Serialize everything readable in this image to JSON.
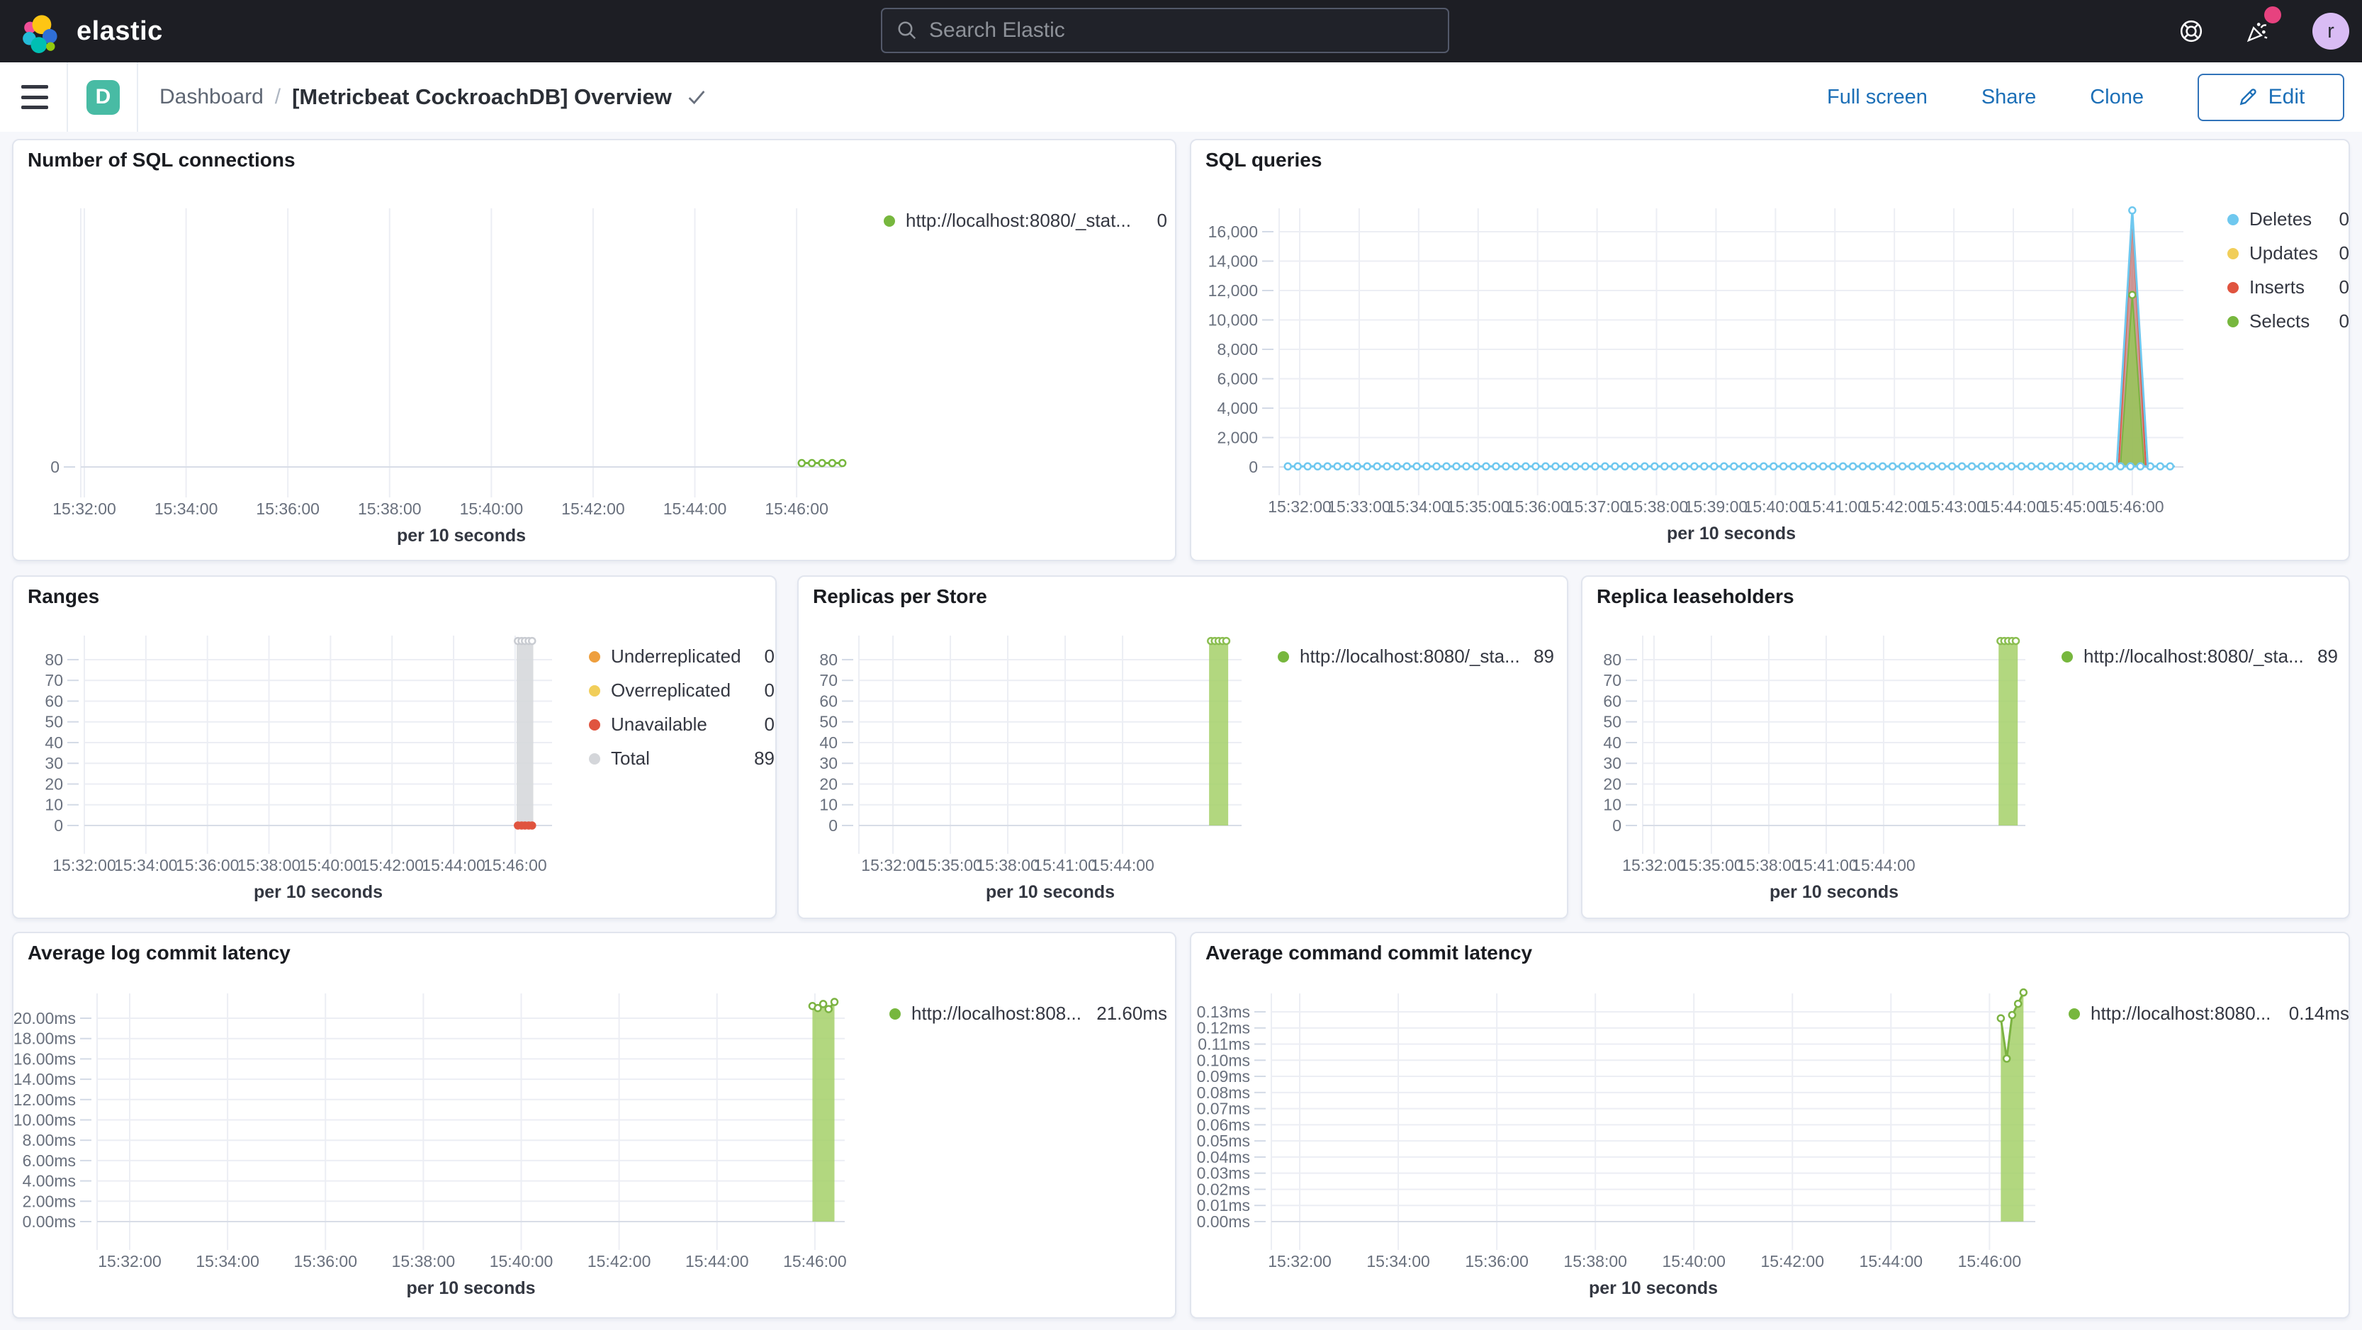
{
  "topnav": {
    "brand": "elastic",
    "search_placeholder": "Search Elastic",
    "avatar_initial": "r"
  },
  "toolbar": {
    "space_initial": "D",
    "breadcrumb_root": "Dashboard",
    "breadcrumb_sep": "/",
    "title": "[Metricbeat CockroachDB] Overview",
    "actions": {
      "full_screen": "Full screen",
      "share": "Share",
      "clone": "Clone",
      "edit": "Edit"
    }
  },
  "colors": {
    "header_bg": "#1D1E24",
    "accent_blue": "#1C6FB7",
    "series_green": "#77B73E",
    "series_blue": "#6FC8EF",
    "series_yellow": "#F1CE5A",
    "series_red": "#E0543F",
    "series_orange": "#EE9F3E",
    "series_gray": "#D4D6DA",
    "space_badge": "#48BBA4",
    "notification_pink": "#E7427F"
  },
  "panels": [
    {
      "id": "sql-connections",
      "title": "Number of SQL connections",
      "x_label": "per 10 seconds",
      "legend": [
        {
          "label": "http://localhost:8080/_stat...",
          "value": "0",
          "color": "#77B73E"
        }
      ]
    },
    {
      "id": "sql-queries",
      "title": "SQL queries",
      "x_label": "per 10 seconds",
      "legend": [
        {
          "label": "Deletes",
          "value": "0",
          "color": "#6FC8EF"
        },
        {
          "label": "Updates",
          "value": "0",
          "color": "#F1CE5A"
        },
        {
          "label": "Inserts",
          "value": "0",
          "color": "#E0543F"
        },
        {
          "label": "Selects",
          "value": "0",
          "color": "#77B73E"
        }
      ]
    },
    {
      "id": "ranges",
      "title": "Ranges",
      "x_label": "per 10 seconds",
      "legend": [
        {
          "label": "Underreplicated",
          "value": "0",
          "color": "#EE9F3E"
        },
        {
          "label": "Overreplicated",
          "value": "0",
          "color": "#F1CE5A"
        },
        {
          "label": "Unavailable",
          "value": "0",
          "color": "#E0543F"
        },
        {
          "label": "Total",
          "value": "89",
          "color": "#D4D6DA"
        }
      ]
    },
    {
      "id": "replicas-per-store",
      "title": "Replicas per Store",
      "x_label": "per 10 seconds",
      "legend": [
        {
          "label": "http://localhost:8080/_sta...",
          "value": "89",
          "color": "#77B73E"
        }
      ]
    },
    {
      "id": "replica-leaseholders",
      "title": "Replica leaseholders",
      "x_label": "per 10 seconds",
      "legend": [
        {
          "label": "http://localhost:8080/_sta...",
          "value": "89",
          "color": "#77B73E"
        }
      ]
    },
    {
      "id": "avg-log-commit-latency",
      "title": "Average log commit latency",
      "x_label": "per 10 seconds",
      "legend": [
        {
          "label": "http://localhost:808...",
          "value": "21.60ms",
          "color": "#77B73E"
        }
      ]
    },
    {
      "id": "avg-command-commit-latency",
      "title": "Average command commit latency",
      "x_label": "per 10 seconds",
      "legend": [
        {
          "label": "http://localhost:8080...",
          "value": "0.14ms",
          "color": "#77B73E"
        }
      ]
    }
  ],
  "chart_data": [
    {
      "id": "sql-connections",
      "type": "line",
      "x_domain": [
        -0.07,
        14.89
      ],
      "y_domain": [
        0,
        100
      ],
      "x_ticks": [
        {
          "t": 0,
          "label": "15:32:00"
        },
        {
          "t": 2,
          "label": "15:34:00"
        },
        {
          "t": 4,
          "label": "15:36:00"
        },
        {
          "t": 6,
          "label": "15:38:00"
        },
        {
          "t": 8,
          "label": "15:40:00"
        },
        {
          "t": 10,
          "label": "15:42:00"
        },
        {
          "t": 12,
          "label": "15:44:00"
        },
        {
          "t": 14,
          "label": "15:46:00"
        }
      ],
      "y_ticks": [
        {
          "v": 0,
          "label": "0"
        }
      ],
      "x_label": "per 10 seconds",
      "series": [
        {
          "name": "http://localhost:8080/_stat... connections",
          "color": "#77B73E",
          "width": 3,
          "markers": "all",
          "points": [
            [
              14.1,
              1.5
            ],
            [
              14.3,
              1.5
            ],
            [
              14.5,
              1.5
            ],
            [
              14.7,
              1.5
            ],
            [
              14.9,
              1.5
            ]
          ]
        }
      ]
    },
    {
      "id": "sql-queries",
      "type": "line",
      "x_domain": [
        -0.346,
        14.86
      ],
      "y_domain": [
        0,
        17590
      ],
      "x_ticks": [
        {
          "t": 0,
          "label": "15:32:00"
        },
        {
          "t": 1,
          "label": "15:33:00"
        },
        {
          "t": 2,
          "label": "15:34:00"
        },
        {
          "t": 3,
          "label": "15:35:00"
        },
        {
          "t": 4,
          "label": "15:36:00"
        },
        {
          "t": 5,
          "label": "15:37:00"
        },
        {
          "t": 6,
          "label": "15:38:00"
        },
        {
          "t": 7,
          "label": "15:39:00"
        },
        {
          "t": 8,
          "label": "15:40:00"
        },
        {
          "t": 9,
          "label": "15:41:00"
        },
        {
          "t": 10,
          "label": "15:42:00"
        },
        {
          "t": 11,
          "label": "15:43:00"
        },
        {
          "t": 12,
          "label": "15:44:00"
        },
        {
          "t": 13,
          "label": "15:45:00"
        },
        {
          "t": 14,
          "label": "15:46:00"
        }
      ],
      "y_ticks": [
        {
          "v": 0,
          "label": "0"
        },
        {
          "v": 2000,
          "label": "2,000"
        },
        {
          "v": 4000,
          "label": "4,000"
        },
        {
          "v": 6000,
          "label": "6,000"
        },
        {
          "v": 8000,
          "label": "8,000"
        },
        {
          "v": 10000,
          "label": "10,000"
        },
        {
          "v": 12000,
          "label": "12,000"
        },
        {
          "v": 14000,
          "label": "14,000"
        },
        {
          "v": 16000,
          "label": "16,000"
        }
      ],
      "x_label": "per 10 seconds",
      "series": [
        {
          "name": "Deletes spike fill",
          "color": "#6FC8EF",
          "stroke": false,
          "fill": "rgba(130,206,241,0.55)",
          "points": [
            [
              13.74,
              0
            ],
            [
              14.0,
              17450
            ],
            [
              14.26,
              0
            ]
          ]
        },
        {
          "name": "Inserts",
          "color": "#DD5A45",
          "width": 2,
          "fill": "rgba(224,90,71,0.55)",
          "points": [
            [
              13.77,
              0
            ],
            [
              14.0,
              17000
            ],
            [
              14.23,
              0
            ]
          ]
        },
        {
          "name": "Selects",
          "color": "#7CB342",
          "width": 2,
          "fill": "rgba(151,199,89,0.85)",
          "points": [
            [
              13.8,
              0
            ],
            [
              14.0,
              11700
            ],
            [
              14.2,
              0
            ]
          ],
          "marker_points": [
            [
              14.0,
              11700
            ]
          ]
        },
        {
          "name": "Deletes baseline",
          "color": "#6FC8EF",
          "width": 3,
          "markers_every": 0.1667,
          "points": [
            [
              -0.2,
              40
            ],
            [
              14.7,
              40
            ]
          ]
        },
        {
          "name": "Deletes",
          "color": "#6FC8EF",
          "width": 3,
          "points": [
            [
              13.74,
              40
            ],
            [
              14.0,
              17450
            ],
            [
              14.26,
              40
            ]
          ],
          "marker_points": [
            [
              14.0,
              17450
            ]
          ]
        }
      ]
    },
    {
      "id": "ranges",
      "type": "line",
      "x_domain": [
        0,
        15.2
      ],
      "y_domain": [
        0,
        91.6
      ],
      "x_ticks": [
        {
          "t": 0,
          "label": "15:32:00"
        },
        {
          "t": 2,
          "label": "15:34:00"
        },
        {
          "t": 4,
          "label": "15:36:00"
        },
        {
          "t": 6,
          "label": "15:38:00"
        },
        {
          "t": 8,
          "label": "15:40:00"
        },
        {
          "t": 10,
          "label": "15:42:00"
        },
        {
          "t": 12,
          "label": "15:44:00"
        },
        {
          "t": 14,
          "label": "15:46:00"
        }
      ],
      "y_ticks": [
        {
          "v": 0,
          "label": "0"
        },
        {
          "v": 10,
          "label": "10"
        },
        {
          "v": 20,
          "label": "20"
        },
        {
          "v": 30,
          "label": "30"
        },
        {
          "v": 40,
          "label": "40"
        },
        {
          "v": 50,
          "label": "50"
        },
        {
          "v": 60,
          "label": "60"
        },
        {
          "v": 70,
          "label": "70"
        },
        {
          "v": 80,
          "label": "80"
        }
      ],
      "x_label": "per 10 seconds",
      "series": [
        {
          "name": "Total",
          "color": "#C9CCD2",
          "width": 2,
          "fill": "rgba(214,216,220,0.9)",
          "points": [
            [
              14.05,
              89
            ],
            [
              14.59,
              89
            ]
          ],
          "marker_points": [
            [
              14.09,
              89
            ],
            [
              14.21,
              89
            ],
            [
              14.32,
              89
            ],
            [
              14.44,
              89
            ],
            [
              14.55,
              89
            ]
          ]
        },
        {
          "name": "Unavailable",
          "color": "#E0543F",
          "stroke": false,
          "marker_fill": "#E0543F",
          "points": [
            [
              14.09,
              0
            ],
            [
              14.55,
              0
            ]
          ],
          "marker_points": [
            [
              14.09,
              0
            ],
            [
              14.21,
              0
            ],
            [
              14.32,
              0
            ],
            [
              14.44,
              0
            ],
            [
              14.55,
              0
            ]
          ]
        }
      ]
    },
    {
      "id": "replicas-per-store",
      "type": "line",
      "x_domain": [
        0,
        20
      ],
      "y_domain": [
        0,
        91.6
      ],
      "x_ticks": [
        {
          "t": 1.78,
          "label": "15:32:00"
        },
        {
          "t": 4.78,
          "label": "15:35:00"
        },
        {
          "t": 7.78,
          "label": "15:38:00"
        },
        {
          "t": 10.78,
          "label": "15:41:00"
        },
        {
          "t": 13.78,
          "label": "15:44:00"
        }
      ],
      "y_ticks": [
        {
          "v": 0,
          "label": "0"
        },
        {
          "v": 10,
          "label": "10"
        },
        {
          "v": 20,
          "label": "20"
        },
        {
          "v": 30,
          "label": "30"
        },
        {
          "v": 40,
          "label": "40"
        },
        {
          "v": 50,
          "label": "50"
        },
        {
          "v": 60,
          "label": "60"
        },
        {
          "v": 70,
          "label": "70"
        },
        {
          "v": 80,
          "label": "80"
        }
      ],
      "x_label": "per 10 seconds",
      "series": [
        {
          "name": "http://localhost:8080/_sta...",
          "color": "#8BBE51",
          "width": 2,
          "fill": "rgba(165,208,104,0.85)",
          "points": [
            [
              18.3,
              89
            ],
            [
              19.3,
              89
            ]
          ],
          "marker_points": [
            [
              18.4,
              89
            ],
            [
              18.6,
              89
            ],
            [
              18.8,
              89
            ],
            [
              19.0,
              89
            ],
            [
              19.2,
              89
            ]
          ]
        }
      ]
    },
    {
      "id": "replica-leaseholders",
      "type": "line",
      "x_domain": [
        0,
        20
      ],
      "y_domain": [
        0,
        91.6
      ],
      "x_ticks": [
        {
          "t": 0.59,
          "label": "15:32:00"
        },
        {
          "t": 3.59,
          "label": "15:35:00"
        },
        {
          "t": 6.59,
          "label": "15:38:00"
        },
        {
          "t": 9.59,
          "label": "15:41:00"
        },
        {
          "t": 12.59,
          "label": "15:44:00"
        }
      ],
      "y_ticks": [
        {
          "v": 0,
          "label": "0"
        },
        {
          "v": 10,
          "label": "10"
        },
        {
          "v": 20,
          "label": "20"
        },
        {
          "v": 30,
          "label": "30"
        },
        {
          "v": 40,
          "label": "40"
        },
        {
          "v": 50,
          "label": "50"
        },
        {
          "v": 60,
          "label": "60"
        },
        {
          "v": 70,
          "label": "70"
        },
        {
          "v": 80,
          "label": "80"
        }
      ],
      "x_label": "per 10 seconds",
      "series": [
        {
          "name": "http://localhost:8080/_sta...",
          "color": "#8BBE51",
          "width": 2,
          "fill": "rgba(165,208,104,0.85)",
          "points": [
            [
              18.6,
              89
            ],
            [
              19.6,
              89
            ]
          ],
          "marker_points": [
            [
              18.7,
              89
            ],
            [
              18.9,
              89
            ],
            [
              19.1,
              89
            ],
            [
              19.3,
              89
            ],
            [
              19.5,
              89
            ]
          ]
        }
      ]
    },
    {
      "id": "avg-log-commit-latency",
      "type": "line",
      "x_domain": [
        -0.666,
        14.61
      ],
      "y_domain": [
        0,
        22.44
      ],
      "x_ticks": [
        {
          "t": 0,
          "label": "15:32:00"
        },
        {
          "t": 2,
          "label": "15:34:00"
        },
        {
          "t": 4,
          "label": "15:36:00"
        },
        {
          "t": 6,
          "label": "15:38:00"
        },
        {
          "t": 8,
          "label": "15:40:00"
        },
        {
          "t": 10,
          "label": "15:42:00"
        },
        {
          "t": 12,
          "label": "15:44:00"
        },
        {
          "t": 14,
          "label": "15:46:00"
        }
      ],
      "y_ticks": [
        {
          "v": 0,
          "label": "0.00ms"
        },
        {
          "v": 2,
          "label": "2.00ms"
        },
        {
          "v": 4,
          "label": "4.00ms"
        },
        {
          "v": 6,
          "label": "6.00ms"
        },
        {
          "v": 8,
          "label": "8.00ms"
        },
        {
          "v": 10,
          "label": "10.00ms"
        },
        {
          "v": 12,
          "label": "12.00ms"
        },
        {
          "v": 14,
          "label": "14.00ms"
        },
        {
          "v": 16,
          "label": "16.00ms"
        },
        {
          "v": 18,
          "label": "18.00ms"
        },
        {
          "v": 20,
          "label": "20.00ms"
        }
      ],
      "x_label": "per 10 seconds",
      "series": [
        {
          "name": "http://localhost:808...",
          "color": "#7CB342",
          "width": 3,
          "fill": "rgba(165,208,104,0.85)",
          "markers": "all",
          "points": [
            [
              13.95,
              21.2
            ],
            [
              14.06,
              21.0
            ],
            [
              14.17,
              21.4
            ],
            [
              14.28,
              20.9
            ],
            [
              14.4,
              21.6
            ]
          ]
        }
      ]
    },
    {
      "id": "avg-command-commit-latency",
      "type": "line",
      "x_domain": [
        -0.576,
        14.93
      ],
      "y_domain": [
        0,
        0.1414
      ],
      "x_ticks": [
        {
          "t": 0,
          "label": "15:32:00"
        },
        {
          "t": 2,
          "label": "15:34:00"
        },
        {
          "t": 4,
          "label": "15:36:00"
        },
        {
          "t": 6,
          "label": "15:38:00"
        },
        {
          "t": 8,
          "label": "15:40:00"
        },
        {
          "t": 10,
          "label": "15:42:00"
        },
        {
          "t": 12,
          "label": "15:44:00"
        },
        {
          "t": 14,
          "label": "15:46:00"
        }
      ],
      "y_ticks": [
        {
          "v": 0,
          "label": "0.00ms"
        },
        {
          "v": 0.01,
          "label": "0.01ms"
        },
        {
          "v": 0.02,
          "label": "0.02ms"
        },
        {
          "v": 0.03,
          "label": "0.03ms"
        },
        {
          "v": 0.04,
          "label": "0.04ms"
        },
        {
          "v": 0.05,
          "label": "0.05ms"
        },
        {
          "v": 0.06,
          "label": "0.06ms"
        },
        {
          "v": 0.07,
          "label": "0.07ms"
        },
        {
          "v": 0.08,
          "label": "0.08ms"
        },
        {
          "v": 0.09,
          "label": "0.09ms"
        },
        {
          "v": 0.1,
          "label": "0.10ms"
        },
        {
          "v": 0.11,
          "label": "0.11ms"
        },
        {
          "v": 0.12,
          "label": "0.12ms"
        },
        {
          "v": 0.13,
          "label": "0.13ms"
        }
      ],
      "x_label": "per 10 seconds",
      "series": [
        {
          "name": "http://localhost:8080...",
          "color": "#7CB342",
          "width": 3,
          "fill": "rgba(165,208,104,0.85)",
          "markers": "all",
          "points": [
            [
              14.23,
              0.126
            ],
            [
              14.35,
              0.101
            ],
            [
              14.46,
              0.128
            ],
            [
              14.58,
              0.135
            ],
            [
              14.69,
              0.142
            ]
          ]
        }
      ]
    }
  ]
}
